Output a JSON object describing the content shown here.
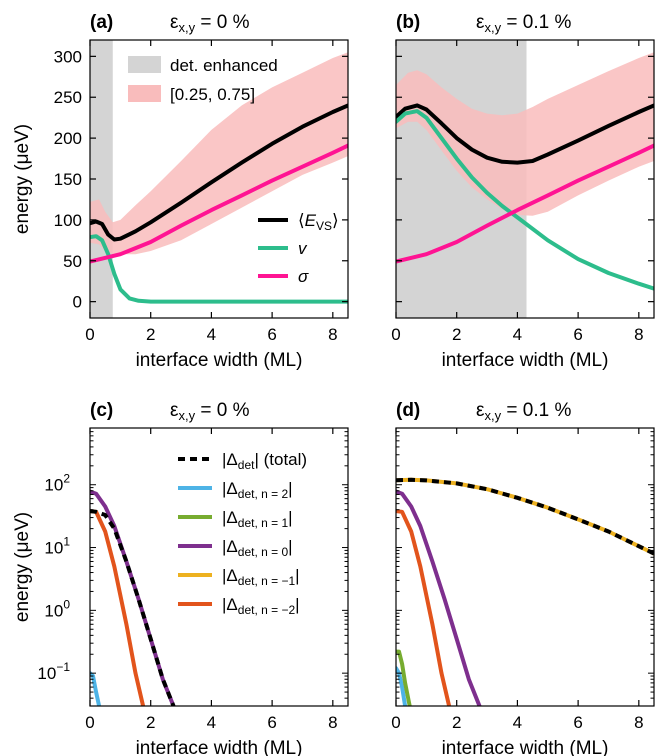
{
  "chart_data": [
    {
      "panel": "(a)",
      "type": "line",
      "title": "ε",
      "title_sub": "x,y",
      "title_tail": " = 0 %",
      "xlabel": "interface width (ML)",
      "ylabel": "energy (μeV)",
      "xlim": [
        0,
        8.5
      ],
      "ylim": [
        -20,
        320
      ],
      "yscale": "linear",
      "xticks": [
        "0",
        "2",
        "4",
        "6",
        "8"
      ],
      "yticks": [
        "0",
        "50",
        "100",
        "150",
        "200",
        "250",
        "300"
      ],
      "shade": {
        "x0": 0,
        "x1": 0.75,
        "color": "#d4d4d4",
        "label": "det. enhanced"
      },
      "band": {
        "label": "[0.25, 0.75]",
        "color": "#f9bcbc",
        "x": [
          0,
          0.3,
          0.5,
          0.75,
          1.0,
          1.5,
          2,
          3,
          4,
          5,
          6,
          7,
          8,
          8.5
        ],
        "lower": [
          72,
          70,
          62,
          58,
          58,
          58,
          62,
          75,
          95,
          115,
          135,
          155,
          170,
          178
        ],
        "upper": [
          122,
          125,
          110,
          97,
          100,
          118,
          135,
          172,
          210,
          240,
          262,
          280,
          298,
          305
        ]
      },
      "series": [
        {
          "name": "⟨E",
          "name_sub": "VS",
          "name_tail": "⟩",
          "color": "#000000",
          "x": [
            0,
            0.2,
            0.4,
            0.6,
            0.8,
            1.0,
            1.5,
            2,
            3,
            4,
            5,
            6,
            7,
            8,
            8.5
          ],
          "values": [
            96,
            98,
            95,
            82,
            76,
            77,
            86,
            97,
            121,
            146,
            170,
            193,
            214,
            232,
            240
          ]
        },
        {
          "name": "v",
          "color": "#2dbd8c",
          "x": [
            0,
            0.2,
            0.4,
            0.6,
            0.8,
            1.0,
            1.3,
            1.6,
            2.0,
            3,
            8.5
          ],
          "values": [
            79,
            80,
            75,
            58,
            34,
            15,
            4,
            1,
            0,
            0,
            0
          ]
        },
        {
          "name": "σ",
          "color": "#ff1493",
          "x": [
            0,
            1,
            2,
            3,
            4,
            5,
            6,
            7,
            8,
            8.5
          ],
          "values": [
            49,
            58,
            73,
            93,
            112,
            130,
            148,
            165,
            182,
            191
          ]
        }
      ]
    },
    {
      "panel": "(b)",
      "type": "line",
      "title": "ε",
      "title_sub": "x,y",
      "title_tail": " = 0.1 %",
      "xlabel": "interface width (ML)",
      "xlim": [
        0,
        8.5
      ],
      "ylim": [
        -20,
        320
      ],
      "yscale": "linear",
      "xticks": [
        "0",
        "2",
        "4",
        "6",
        "8"
      ],
      "shade": {
        "x0": 0,
        "x1": 4.3,
        "color": "#d4d4d4"
      },
      "band": {
        "color": "#f9bcbc",
        "x": [
          0,
          0.4,
          0.7,
          1.0,
          1.5,
          2,
          2.5,
          3,
          3.5,
          4,
          4.5,
          5,
          6,
          7,
          8,
          8.5
        ],
        "lower": [
          212,
          220,
          220,
          210,
          185,
          160,
          140,
          125,
          113,
          106,
          105,
          110,
          130,
          148,
          165,
          172
        ],
        "upper": [
          265,
          280,
          283,
          278,
          262,
          248,
          236,
          230,
          228,
          230,
          238,
          248,
          265,
          282,
          298,
          305
        ]
      },
      "series": [
        {
          "name": "⟨E⟩",
          "color": "#000000",
          "x": [
            0,
            0.3,
            0.7,
            1.0,
            1.5,
            2,
            2.5,
            3,
            3.5,
            4,
            4.5,
            5,
            6,
            7,
            8,
            8.5
          ],
          "values": [
            226,
            236,
            240,
            235,
            218,
            200,
            186,
            176,
            171,
            170,
            172,
            180,
            197,
            215,
            232,
            240
          ]
        },
        {
          "name": "v",
          "color": "#2dbd8c",
          "x": [
            0,
            0.3,
            0.7,
            1.0,
            1.5,
            2,
            2.5,
            3,
            3.5,
            4,
            5,
            6,
            7,
            8,
            8.5
          ],
          "values": [
            220,
            230,
            233,
            225,
            200,
            175,
            152,
            133,
            117,
            103,
            75,
            52,
            35,
            22,
            16
          ]
        },
        {
          "name": "σ",
          "color": "#ff1493",
          "x": [
            0,
            1,
            2,
            3,
            4,
            5,
            6,
            7,
            8,
            8.5
          ],
          "values": [
            49,
            58,
            73,
            93,
            112,
            130,
            148,
            165,
            182,
            191
          ]
        }
      ]
    },
    {
      "panel": "(c)",
      "type": "line",
      "title": "ε",
      "title_sub": "x,y",
      "title_tail": " = 0 %",
      "xlabel": "interface width (ML)",
      "ylabel": "energy (μeV)",
      "xlim": [
        0,
        8.5
      ],
      "ylim": [
        0.03,
        800
      ],
      "yscale": "log",
      "xticks": [
        "0",
        "2",
        "4",
        "6",
        "8"
      ],
      "yticks": [
        {
          "value": 0.1,
          "base": "10",
          "exp": "−1"
        },
        {
          "value": 1,
          "base": "10",
          "exp": "0"
        },
        {
          "value": 10,
          "base": "10",
          "exp": "1"
        },
        {
          "value": 100,
          "base": "10",
          "exp": "2"
        }
      ],
      "series": [
        {
          "name": "n = −2",
          "color": "#e2541c",
          "x": [
            0,
            0.2,
            0.5,
            0.8,
            1.2,
            1.5,
            1.75
          ],
          "values": [
            38,
            37,
            18,
            5,
            0.6,
            0.1,
            0.03
          ]
        },
        {
          "name": "n = 0",
          "color": "#7e2f8e",
          "x": [
            0,
            0.2,
            0.5,
            0.8,
            1.2,
            1.6,
            2.0,
            2.4,
            2.75
          ],
          "values": [
            78,
            72,
            45,
            22,
            6,
            1.5,
            0.35,
            0.08,
            0.03
          ]
        },
        {
          "name": "total",
          "color": "#000000",
          "dashed": true,
          "x": [
            0,
            0.2,
            0.5,
            0.8,
            1.2,
            1.6,
            2.0,
            2.4,
            2.75
          ],
          "values": [
            38,
            37,
            33,
            20,
            6,
            1.5,
            0.35,
            0.08,
            0.03
          ]
        },
        {
          "name": "n = 2",
          "color": "#4db3e6",
          "x": [
            0,
            0.1,
            0.2,
            0.3
          ],
          "values": [
            0.1,
            0.09,
            0.05,
            0.03
          ]
        }
      ]
    },
    {
      "panel": "(d)",
      "type": "line",
      "title": "ε",
      "title_sub": "x,y",
      "title_tail": " = 0.1 %",
      "xlabel": "interface width (ML)",
      "xlim": [
        0,
        8.5
      ],
      "ylim": [
        0.03,
        800
      ],
      "yscale": "log",
      "xticks": [
        "0",
        "2",
        "4",
        "6",
        "8"
      ],
      "series": [
        {
          "name": "n = 2",
          "color": "#4db3e6",
          "x": [
            0,
            0.1,
            0.2,
            0.3
          ],
          "values": [
            0.12,
            0.1,
            0.06,
            0.03
          ]
        },
        {
          "name": "n = 1",
          "color": "#77ac30",
          "x": [
            0,
            0.1,
            0.2,
            0.3,
            0.45
          ],
          "values": [
            0.22,
            0.22,
            0.14,
            0.07,
            0.03
          ]
        },
        {
          "name": "n = −2",
          "color": "#e2541c",
          "x": [
            0,
            0.2,
            0.5,
            0.8,
            1.2,
            1.5,
            1.75
          ],
          "values": [
            38,
            37,
            18,
            5,
            0.6,
            0.1,
            0.03
          ]
        },
        {
          "name": "n = 0",
          "color": "#7e2f8e",
          "x": [
            0,
            0.2,
            0.5,
            0.8,
            1.2,
            1.6,
            2.0,
            2.4,
            2.75
          ],
          "values": [
            78,
            72,
            45,
            22,
            6,
            1.5,
            0.35,
            0.08,
            0.03
          ]
        },
        {
          "name": "n = −1",
          "color": "#edb120",
          "x": [
            0,
            0.5,
            1,
            2,
            3,
            4,
            5,
            6,
            7,
            8,
            8.5
          ],
          "values": [
            118,
            120,
            117,
            105,
            85,
            62,
            43,
            28,
            18,
            10.5,
            8
          ]
        },
        {
          "name": "total",
          "color": "#000000",
          "dashed": true,
          "x": [
            0,
            0.5,
            1,
            2,
            3,
            4,
            5,
            6,
            7,
            8,
            8.5
          ],
          "values": [
            118,
            120,
            117,
            105,
            85,
            62,
            43,
            28,
            18,
            10.5,
            8
          ]
        }
      ]
    }
  ],
  "legend_a_top": [
    {
      "label": "det. enhanced",
      "color": "#d4d4d4"
    },
    {
      "label": "[0.25, 0.75]",
      "color": "#f9bcbc"
    }
  ],
  "legend_c": [
    {
      "inner": "Δ",
      "sub": "det",
      "tail": " (total)",
      "color": "#000000",
      "dashed": true
    },
    {
      "inner": "Δ",
      "sub": "det, n = 2",
      "tail": "",
      "color": "#4db3e6"
    },
    {
      "inner": "Δ",
      "sub": "det, n = 1",
      "tail": "",
      "color": "#77ac30"
    },
    {
      "inner": "Δ",
      "sub": "det, n = 0",
      "tail": "",
      "color": "#7e2f8e"
    },
    {
      "inner": "Δ",
      "sub": "det, n = −1",
      "tail": "",
      "color": "#edb120"
    },
    {
      "inner": "Δ",
      "sub": "det, n = −2",
      "tail": "",
      "color": "#e2541c"
    }
  ]
}
